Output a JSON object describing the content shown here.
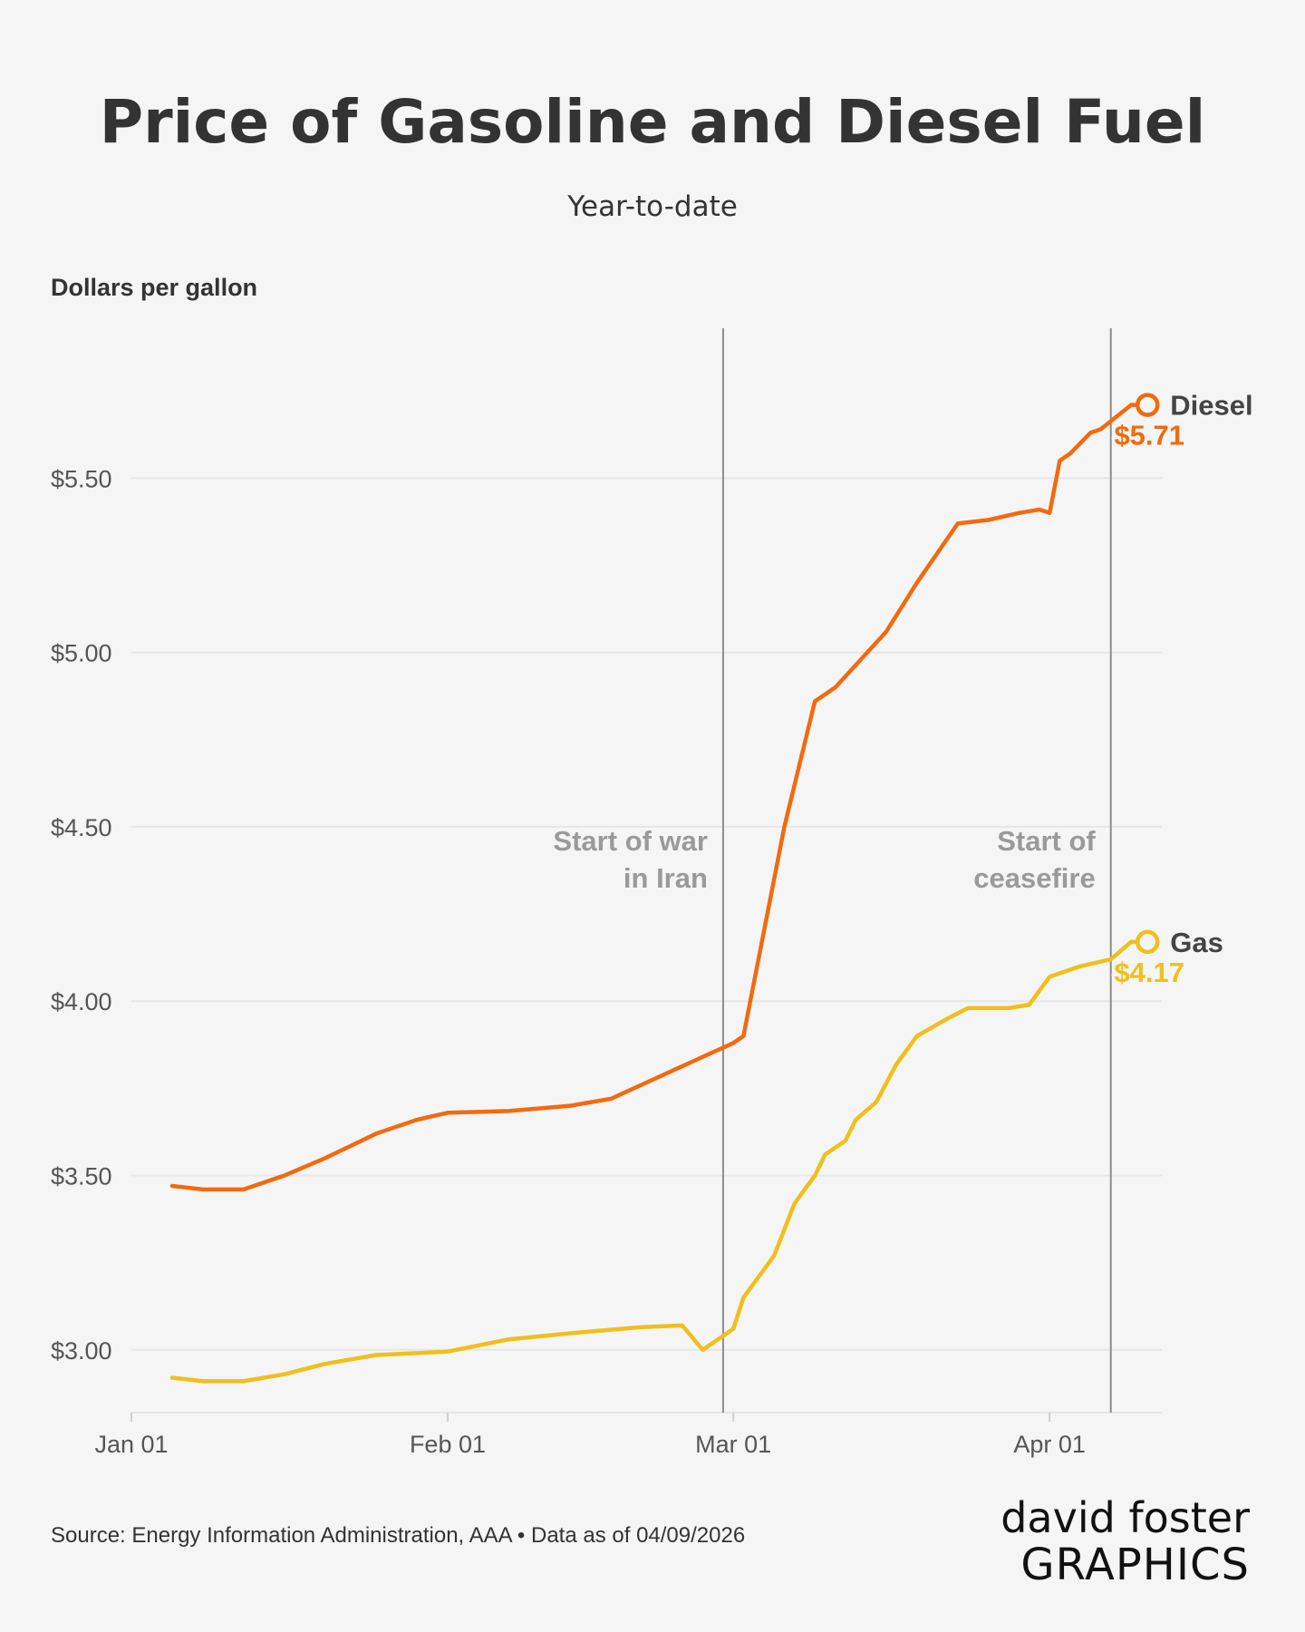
{
  "colors": {
    "background": "#f5f5f5",
    "diesel": "#f26a0f",
    "gas": "#f0bf1c",
    "grid": "#e6e6e6",
    "event_line": "#8c8c8c",
    "annotation": "#9a9a9a",
    "brand_accent": "#1aa0e6"
  },
  "brand": {
    "line1": "david foster",
    "line2": "GRAPHICS"
  },
  "source": "Source: Energy Information Administration, AAA • Data as of 04/09/2026",
  "chart_data": {
    "type": "line",
    "title": "Price of Gasoline and Diesel Fuel",
    "subtitle": "Year-to-date",
    "ylabel": "Dollars per gallon",
    "xlabel": "",
    "x_range": [
      "2026-01-01",
      "2026-04-12"
    ],
    "ylim": [
      2.82,
      5.93
    ],
    "yticks": [
      {
        "value": 3.0,
        "label": "$3.00"
      },
      {
        "value": 3.5,
        "label": "$3.50"
      },
      {
        "value": 4.0,
        "label": "$4.00"
      },
      {
        "value": 4.5,
        "label": "$4.50"
      },
      {
        "value": 5.0,
        "label": "$5.00"
      },
      {
        "value": 5.5,
        "label": "$5.50"
      }
    ],
    "xticks": [
      {
        "date": "2026-01-01",
        "label": "Jan 01"
      },
      {
        "date": "2026-02-01",
        "label": "Feb 01"
      },
      {
        "date": "2026-03-01",
        "label": "Mar 01"
      },
      {
        "date": "2026-04-01",
        "label": "Apr 01"
      }
    ],
    "grid": "horizontal",
    "events": [
      {
        "date": "2026-02-28",
        "label_lines": [
          "Start of war",
          "in Iran"
        ]
      },
      {
        "date": "2026-04-07",
        "label_lines": [
          "Start of",
          "ceasefire"
        ]
      }
    ],
    "series": [
      {
        "name": "Diesel",
        "end_label": "$5.71",
        "points": [
          [
            "2026-01-05",
            3.47
          ],
          [
            "2026-01-08",
            3.46
          ],
          [
            "2026-01-12",
            3.46
          ],
          [
            "2026-01-16",
            3.5
          ],
          [
            "2026-01-20",
            3.55
          ],
          [
            "2026-01-25",
            3.62
          ],
          [
            "2026-01-29",
            3.66
          ],
          [
            "2026-02-01",
            3.68
          ],
          [
            "2026-02-07",
            3.685
          ],
          [
            "2026-02-13",
            3.7
          ],
          [
            "2026-02-17",
            3.72
          ],
          [
            "2026-02-20",
            3.76
          ],
          [
            "2026-02-23",
            3.8
          ],
          [
            "2026-02-26",
            3.84
          ],
          [
            "2026-03-01",
            3.88
          ],
          [
            "2026-03-02",
            3.9
          ],
          [
            "2026-03-06",
            4.5
          ],
          [
            "2026-03-09",
            4.86
          ],
          [
            "2026-03-11",
            4.9
          ],
          [
            "2026-03-16",
            5.06
          ],
          [
            "2026-03-19",
            5.2
          ],
          [
            "2026-03-23",
            5.37
          ],
          [
            "2026-03-26",
            5.38
          ],
          [
            "2026-03-29",
            5.4
          ],
          [
            "2026-03-31",
            5.41
          ],
          [
            "2026-04-01",
            5.4
          ],
          [
            "2026-04-02",
            5.55
          ],
          [
            "2026-04-03",
            5.57
          ],
          [
            "2026-04-05",
            5.63
          ],
          [
            "2026-04-06",
            5.64
          ],
          [
            "2026-04-09",
            5.71
          ]
        ]
      },
      {
        "name": "Gas",
        "end_label": "$4.17",
        "points": [
          [
            "2026-01-05",
            2.92
          ],
          [
            "2026-01-08",
            2.91
          ],
          [
            "2026-01-12",
            2.91
          ],
          [
            "2026-01-16",
            2.93
          ],
          [
            "2026-01-20",
            2.96
          ],
          [
            "2026-01-25",
            2.985
          ],
          [
            "2026-02-01",
            2.995
          ],
          [
            "2026-02-07",
            3.03
          ],
          [
            "2026-02-14",
            3.05
          ],
          [
            "2026-02-20",
            3.065
          ],
          [
            "2026-02-24",
            3.07
          ],
          [
            "2026-02-26",
            3.0
          ],
          [
            "2026-02-28",
            3.04
          ],
          [
            "2026-03-01",
            3.06
          ],
          [
            "2026-03-02",
            3.15
          ],
          [
            "2026-03-05",
            3.27
          ],
          [
            "2026-03-07",
            3.42
          ],
          [
            "2026-03-09",
            3.5
          ],
          [
            "2026-03-10",
            3.56
          ],
          [
            "2026-03-12",
            3.6
          ],
          [
            "2026-03-13",
            3.66
          ],
          [
            "2026-03-15",
            3.71
          ],
          [
            "2026-03-17",
            3.82
          ],
          [
            "2026-03-19",
            3.9
          ],
          [
            "2026-03-22",
            3.95
          ],
          [
            "2026-03-24",
            3.98
          ],
          [
            "2026-03-28",
            3.98
          ],
          [
            "2026-03-30",
            3.99
          ],
          [
            "2026-04-01",
            4.07
          ],
          [
            "2026-04-04",
            4.1
          ],
          [
            "2026-04-07",
            4.12
          ],
          [
            "2026-04-09",
            4.17
          ]
        ]
      }
    ]
  }
}
